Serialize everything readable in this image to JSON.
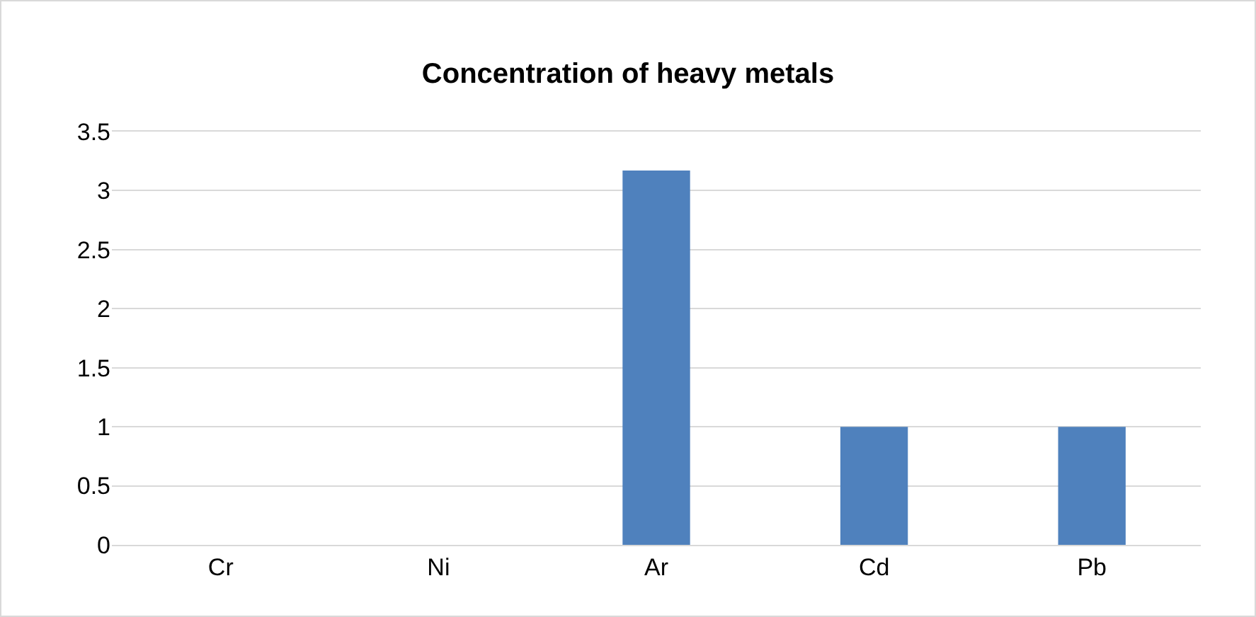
{
  "chart_data": {
    "type": "bar",
    "title": "Concentration of heavy metals",
    "categories": [
      "Cr",
      "Ni",
      "Ar",
      "Cd",
      "Pb"
    ],
    "values": [
      0,
      0,
      3.17,
      1,
      1
    ],
    "color": "#4f81bd",
    "ylim": [
      0,
      3.5
    ],
    "yticks": [
      0,
      0.5,
      1,
      1.5,
      2,
      2.5,
      3,
      3.5
    ],
    "grid": "y"
  }
}
